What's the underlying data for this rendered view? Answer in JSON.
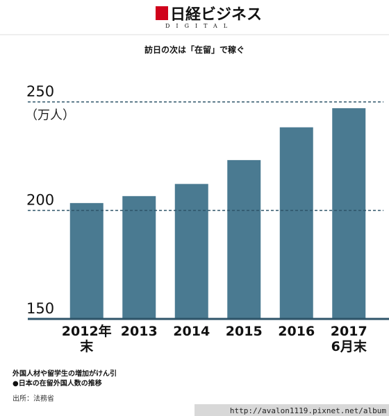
{
  "header": {
    "logo": "日経ビジネス",
    "logo_sub": "DIGITAL"
  },
  "chart_data": {
    "type": "bar",
    "title": "訪日の次は「在留」で稼ぐ",
    "y_unit": "（万人）",
    "categories": [
      "2012年末",
      "2013",
      "2014",
      "2015",
      "2016",
      "2017\n6月末"
    ],
    "values": [
      203.4,
      206.6,
      212.2,
      223.2,
      238.3,
      247.1
    ],
    "color": "#4a7a91",
    "ylim": [
      150,
      250
    ],
    "yticks": [
      150,
      200,
      250
    ],
    "grid": true
  },
  "notes": [
    "外国人材や留学生の増加がけん引",
    "●日本の在留外国人数の推移",
    "出所：法務省"
  ],
  "watermark": "http://avalon1119.pixnet.net/album"
}
